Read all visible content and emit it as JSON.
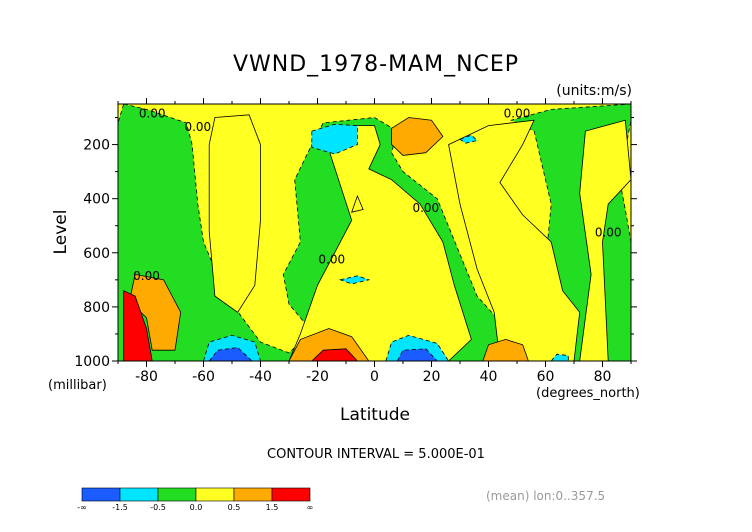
{
  "chart_data": {
    "type": "heatmap",
    "title": "VWND_1978-MAM_NCEP",
    "units_label": "(units:m/s)",
    "xlabel": "Latitude",
    "x_units_label": "(degrees_north)",
    "ylabel": "Level",
    "y_units_label": "(millibar)",
    "xlim": [
      -90,
      90
    ],
    "ylim": [
      1000,
      50
    ],
    "y_reversed": true,
    "x_ticks": [
      "-80",
      "-60",
      "-40",
      "-20",
      "0",
      "20",
      "40",
      "60",
      "80"
    ],
    "x_tick_values": [
      -80,
      -60,
      -40,
      -20,
      0,
      20,
      40,
      60,
      80
    ],
    "y_ticks": [
      "200",
      "400",
      "600",
      "800",
      "1000"
    ],
    "y_tick_values": [
      200,
      400,
      600,
      800,
      1000
    ],
    "contour_label": "0.00",
    "contour_interval_text": "CONTOUR INTERVAL = 5.000E-01",
    "footnote": "(mean) lon:0..357.5",
    "colorbar": {
      "colors": [
        "#1a5cff",
        "#00e5ff",
        "#22dd22",
        "#ffff22",
        "#ffaa00",
        "#ff0000"
      ],
      "labels": [
        "-∞",
        "-1.5",
        "-0.5",
        "0.0",
        "0.5",
        "1.5",
        "∞"
      ],
      "label_values": [
        null,
        -1.5,
        -0.5,
        0.0,
        0.5,
        1.5,
        null
      ]
    },
    "background_color": "#ffff22",
    "regions": [
      {
        "value": -0.25,
        "color": "#22dd22",
        "points": [
          [
            -88,
            50
          ],
          [
            -80,
            70
          ],
          [
            -66,
            120
          ],
          [
            -64,
            200
          ],
          [
            -62,
            420
          ],
          [
            -60,
            560
          ],
          [
            -52,
            760
          ],
          [
            -45,
            860
          ],
          [
            -40,
            930
          ],
          [
            -30,
            970
          ],
          [
            -22,
            890
          ],
          [
            -30,
            790
          ],
          [
            -32,
            680
          ],
          [
            -26,
            560
          ],
          [
            -28,
            330
          ],
          [
            -22,
            200
          ],
          [
            -18,
            120
          ],
          [
            0,
            100
          ],
          [
            8,
            150
          ],
          [
            6,
            230
          ],
          [
            10,
            300
          ],
          [
            22,
            400
          ],
          [
            36,
            760
          ],
          [
            42,
            830
          ],
          [
            54,
            870
          ],
          [
            64,
            870
          ],
          [
            60,
            640
          ],
          [
            62,
            420
          ],
          [
            56,
            150
          ],
          [
            48,
            110
          ],
          [
            62,
            70
          ],
          [
            90,
            50
          ],
          [
            90,
            110
          ],
          [
            86,
            330
          ],
          [
            88,
            440
          ],
          [
            90,
            560
          ],
          [
            90,
            1000
          ],
          [
            -90,
            1000
          ],
          [
            -90,
            120
          ]
        ]
      },
      {
        "value": 0.25,
        "color": "#ffff22",
        "points": [
          [
            -58,
            200
          ],
          [
            -56,
            100
          ],
          [
            -44,
            90
          ],
          [
            -40,
            200
          ],
          [
            -40,
            480
          ],
          [
            -42,
            720
          ],
          [
            -48,
            820
          ],
          [
            -56,
            760
          ],
          [
            -58,
            520
          ]
        ]
      },
      {
        "value": 0.25,
        "color": "#ffff22",
        "points": [
          [
            -16,
            220
          ],
          [
            -10,
            130
          ],
          [
            0,
            130
          ],
          [
            2,
            200
          ],
          [
            -2,
            290
          ],
          [
            6,
            330
          ],
          [
            16,
            420
          ],
          [
            24,
            560
          ],
          [
            28,
            720
          ],
          [
            34,
            920
          ],
          [
            26,
            1000
          ],
          [
            -30,
            1000
          ],
          [
            -26,
            900
          ],
          [
            -20,
            720
          ],
          [
            -14,
            600
          ],
          [
            -8,
            480
          ]
        ]
      },
      {
        "value": 0.25,
        "color": "#ffff22",
        "points": [
          [
            40,
            130
          ],
          [
            56,
            110
          ],
          [
            52,
            200
          ],
          [
            44,
            340
          ],
          [
            52,
            460
          ],
          [
            62,
            560
          ],
          [
            66,
            740
          ],
          [
            72,
            820
          ],
          [
            70,
            1000
          ],
          [
            44,
            1000
          ],
          [
            42,
            820
          ],
          [
            36,
            660
          ],
          [
            30,
            420
          ],
          [
            26,
            200
          ]
        ]
      },
      {
        "value": 0.25,
        "color": "#ffff22",
        "points": [
          [
            74,
            150
          ],
          [
            88,
            110
          ],
          [
            90,
            330
          ],
          [
            82,
            420
          ],
          [
            80,
            560
          ],
          [
            82,
            1000
          ],
          [
            72,
            1000
          ],
          [
            76,
            680
          ],
          [
            72,
            380
          ]
        ]
      },
      {
        "value": 0.25,
        "color": "#ffff22",
        "points": [
          [
            -6,
            390
          ],
          [
            -4,
            440
          ],
          [
            -8,
            450
          ]
        ]
      },
      {
        "value": 0.75,
        "color": "#ffaa00",
        "points": [
          [
            -84,
            680
          ],
          [
            -74,
            700
          ],
          [
            -68,
            820
          ],
          [
            -70,
            960
          ],
          [
            -78,
            960
          ],
          [
            -80,
            840
          ],
          [
            -86,
            780
          ]
        ]
      },
      {
        "value": 0.75,
        "color": "#ffaa00",
        "points": [
          [
            -30,
            1000
          ],
          [
            -26,
            920
          ],
          [
            -16,
            880
          ],
          [
            -8,
            910
          ],
          [
            -2,
            1000
          ]
        ]
      },
      {
        "value": 0.75,
        "color": "#ffaa00",
        "points": [
          [
            38,
            1000
          ],
          [
            40,
            940
          ],
          [
            46,
            920
          ],
          [
            52,
            940
          ],
          [
            54,
            1000
          ]
        ]
      },
      {
        "value": 0.75,
        "color": "#ffaa00",
        "points": [
          [
            6,
            140
          ],
          [
            12,
            100
          ],
          [
            20,
            110
          ],
          [
            24,
            170
          ],
          [
            18,
            230
          ],
          [
            10,
            240
          ],
          [
            6,
            200
          ]
        ]
      },
      {
        "value": 2.0,
        "color": "#ff0000",
        "points": [
          [
            -88,
            740
          ],
          [
            -84,
            760
          ],
          [
            -80,
            880
          ],
          [
            -78,
            1000
          ],
          [
            -88,
            1000
          ]
        ]
      },
      {
        "value": 2.0,
        "color": "#ff0000",
        "points": [
          [
            -22,
            1000
          ],
          [
            -18,
            960
          ],
          [
            -10,
            955
          ],
          [
            -6,
            1000
          ]
        ]
      },
      {
        "value": -1.0,
        "color": "#00e5ff",
        "points": [
          [
            -22,
            150
          ],
          [
            -14,
            125
          ],
          [
            -6,
            130
          ],
          [
            -6,
            200
          ],
          [
            -14,
            235
          ],
          [
            -22,
            210
          ]
        ]
      },
      {
        "value": -1.0,
        "color": "#00e5ff",
        "points": [
          [
            -60,
            1000
          ],
          [
            -58,
            930
          ],
          [
            -50,
            905
          ],
          [
            -42,
            930
          ],
          [
            -40,
            1000
          ]
        ]
      },
      {
        "value": -1.0,
        "color": "#00e5ff",
        "points": [
          [
            4,
            1000
          ],
          [
            6,
            930
          ],
          [
            12,
            905
          ],
          [
            22,
            935
          ],
          [
            26,
            1000
          ]
        ]
      },
      {
        "value": -1.0,
        "color": "#00e5ff",
        "points": [
          [
            -12,
            700
          ],
          [
            -6,
            685
          ],
          [
            -2,
            700
          ],
          [
            -8,
            715
          ]
        ]
      },
      {
        "value": -1.0,
        "color": "#00e5ff",
        "points": [
          [
            62,
            1000
          ],
          [
            64,
            975
          ],
          [
            68,
            980
          ],
          [
            68,
            1000
          ]
        ]
      },
      {
        "value": -1.0,
        "color": "#00e5ff",
        "points": [
          [
            30,
            180
          ],
          [
            34,
            165
          ],
          [
            36,
            185
          ],
          [
            32,
            195
          ]
        ]
      },
      {
        "value": -2.0,
        "color": "#1a5cff",
        "points": [
          [
            -58,
            1000
          ],
          [
            -55,
            960
          ],
          [
            -48,
            950
          ],
          [
            -43,
            1000
          ]
        ]
      },
      {
        "value": -2.0,
        "color": "#1a5cff",
        "points": [
          [
            8,
            1000
          ],
          [
            10,
            960
          ],
          [
            18,
            955
          ],
          [
            22,
            1000
          ]
        ]
      }
    ],
    "contour_labels": [
      {
        "x": -78,
        "y": 100
      },
      {
        "x": -62,
        "y": 150
      },
      {
        "x": -15,
        "y": 640
      },
      {
        "x": -80,
        "y": 700
      },
      {
        "x": 18,
        "y": 450
      },
      {
        "x": 50,
        "y": 100
      },
      {
        "x": 82,
        "y": 540
      }
    ]
  }
}
